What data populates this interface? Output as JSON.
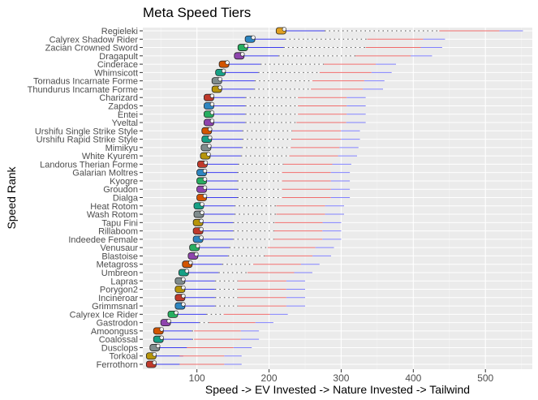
{
  "chart_data": {
    "type": "range-bar",
    "title": "Meta Speed Tiers",
    "xlabel": "Speed -> EV Invested -> Nature Invested -> Tailwind",
    "ylabel": "Speed Rank",
    "xlim": [
      25,
      565
    ],
    "xticks": [
      100,
      200,
      300,
      400,
      500
    ],
    "grid": true,
    "segment_colors": {
      "base_to_ev": "#3b3bf0",
      "ev_to_nature": "#555555",
      "nature_to_tailwind_low": "#f06c6c",
      "tailwind_high": "#8080ff",
      "marker": "#e0a020"
    },
    "pokemon": [
      {
        "name": "Regieleki",
        "base": 220,
        "ev": 277,
        "nature": 436,
        "tailwind": 552
      },
      {
        "name": "Calyrex Shadow Rider",
        "base": 177,
        "ev": 222,
        "nature": 336,
        "tailwind": 444
      },
      {
        "name": "Zacian Crowned Sword",
        "base": 167,
        "ev": 220,
        "nature": 334,
        "tailwind": 440
      },
      {
        "name": "Dragapult",
        "base": 162,
        "ev": 213,
        "nature": 320,
        "tailwind": 426
      },
      {
        "name": "Cinderace",
        "base": 141,
        "ev": 188,
        "nature": 276,
        "tailwind": 376
      },
      {
        "name": "Whimsicott",
        "base": 136,
        "ev": 185,
        "nature": 270,
        "tailwind": 370
      },
      {
        "name": "Tornadus Incarnate Forme",
        "base": 131,
        "ev": 180,
        "nature": 260,
        "tailwind": 360
      },
      {
        "name": "Thundurus Incarnate Forme",
        "base": 131,
        "ev": 179,
        "nature": 258,
        "tailwind": 358
      },
      {
        "name": "Charizard",
        "base": 120,
        "ev": 167,
        "nature": 240,
        "tailwind": 334
      },
      {
        "name": "Zapdos",
        "base": 120,
        "ev": 167,
        "nature": 240,
        "tailwind": 334
      },
      {
        "name": "Entei",
        "base": 120,
        "ev": 167,
        "nature": 240,
        "tailwind": 334
      },
      {
        "name": "Yveltal",
        "base": 120,
        "ev": 167,
        "nature": 238,
        "tailwind": 334
      },
      {
        "name": "Urshifu Single Strike Style",
        "base": 117,
        "ev": 163,
        "nature": 232,
        "tailwind": 326
      },
      {
        "name": "Urshifu Rapid Strike Style",
        "base": 117,
        "ev": 163,
        "nature": 232,
        "tailwind": 326
      },
      {
        "name": "Mimikyu",
        "base": 116,
        "ev": 162,
        "nature": 230,
        "tailwind": 324
      },
      {
        "name": "White Kyurem",
        "base": 115,
        "ev": 161,
        "nature": 228,
        "tailwind": 322
      },
      {
        "name": "Landorus Therian Forme",
        "base": 111,
        "ev": 157,
        "nature": 220,
        "tailwind": 314
      },
      {
        "name": "Galarian Moltres",
        "base": 110,
        "ev": 156,
        "nature": 218,
        "tailwind": 312
      },
      {
        "name": "Kyogre",
        "base": 110,
        "ev": 156,
        "nature": 218,
        "tailwind": 312
      },
      {
        "name": "Groudon",
        "base": 110,
        "ev": 156,
        "nature": 218,
        "tailwind": 312
      },
      {
        "name": "Dialga",
        "base": 110,
        "ev": 156,
        "nature": 218,
        "tailwind": 312
      },
      {
        "name": "Heat Rotom",
        "base": 106,
        "ev": 152,
        "nature": 210,
        "tailwind": 304
      },
      {
        "name": "Wash Rotom",
        "base": 106,
        "ev": 152,
        "nature": 210,
        "tailwind": 304
      },
      {
        "name": "Tapu Fini",
        "base": 105,
        "ev": 150,
        "nature": 208,
        "tailwind": 300
      },
      {
        "name": "Rillaboom",
        "base": 105,
        "ev": 150,
        "nature": 207,
        "tailwind": 300
      },
      {
        "name": "Indeedee Female",
        "base": 105,
        "ev": 150,
        "nature": 207,
        "tailwind": 300
      },
      {
        "name": "Venusaur",
        "base": 100,
        "ev": 145,
        "nature": 198,
        "tailwind": 290
      },
      {
        "name": "Blastoise",
        "base": 98,
        "ev": 143,
        "nature": 194,
        "tailwind": 286
      },
      {
        "name": "Metagross",
        "base": 90,
        "ev": 135,
        "nature": 178,
        "tailwind": 270
      },
      {
        "name": "Umbreon",
        "base": 85,
        "ev": 130,
        "nature": 170,
        "tailwind": 260
      },
      {
        "name": "Lapras",
        "base": 80,
        "ev": 125,
        "nature": 157,
        "tailwind": 250
      },
      {
        "name": "Porygon2",
        "base": 80,
        "ev": 125,
        "nature": 157,
        "tailwind": 250
      },
      {
        "name": "Incineroar",
        "base": 80,
        "ev": 125,
        "nature": 157,
        "tailwind": 250
      },
      {
        "name": "Grimmsnarl",
        "base": 80,
        "ev": 125,
        "nature": 157,
        "tailwind": 250
      },
      {
        "name": "Calyrex Ice Rider",
        "base": 70,
        "ev": 113,
        "nature": 137,
        "tailwind": 226
      },
      {
        "name": "Gastrodon",
        "base": 60,
        "ev": 103,
        "nature": 117,
        "tailwind": 206
      },
      {
        "name": "Amoonguss",
        "base": 50,
        "ev": 93,
        "nature": 96,
        "tailwind": 186
      },
      {
        "name": "Coalossal",
        "base": 50,
        "ev": 93,
        "nature": 96,
        "tailwind": 186
      },
      {
        "name": "Dusclops",
        "base": 45,
        "ev": 88,
        "nature": 86,
        "tailwind": 176
      },
      {
        "name": "Torkoal",
        "base": 40,
        "ev": 81,
        "nature": 76,
        "tailwind": 162
      },
      {
        "name": "Ferrothorn",
        "base": 40,
        "ev": 81,
        "nature": 76,
        "tailwind": 162
      }
    ]
  }
}
